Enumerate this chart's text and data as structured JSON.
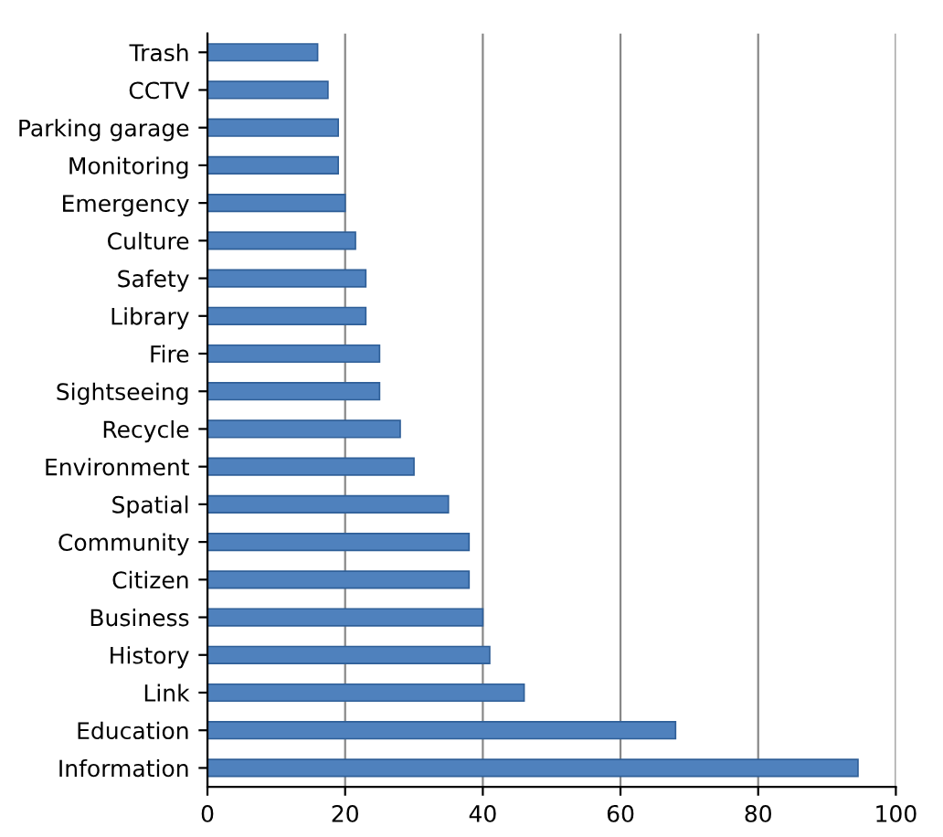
{
  "chart_data": {
    "type": "bar",
    "orientation": "horizontal",
    "categories": [
      "Trash",
      "CCTV",
      "Parking garage",
      "Monitoring",
      "Emergency",
      "Culture",
      "Safety",
      "Library",
      "Fire",
      "Sightseeing",
      "Recycle",
      "Environment",
      "Spatial",
      "Community",
      "Citizen",
      "Business",
      "History",
      "Link",
      "Education",
      "Information"
    ],
    "values": [
      16,
      17.5,
      19,
      19,
      20,
      21.5,
      23,
      23,
      25,
      25,
      28,
      30,
      35,
      38,
      38,
      40,
      41,
      46,
      68,
      94.5
    ],
    "color": "#4f81bd",
    "xlim": [
      0,
      100
    ],
    "xticks": [
      0,
      20,
      40,
      60,
      80,
      100
    ],
    "grid": "x"
  }
}
